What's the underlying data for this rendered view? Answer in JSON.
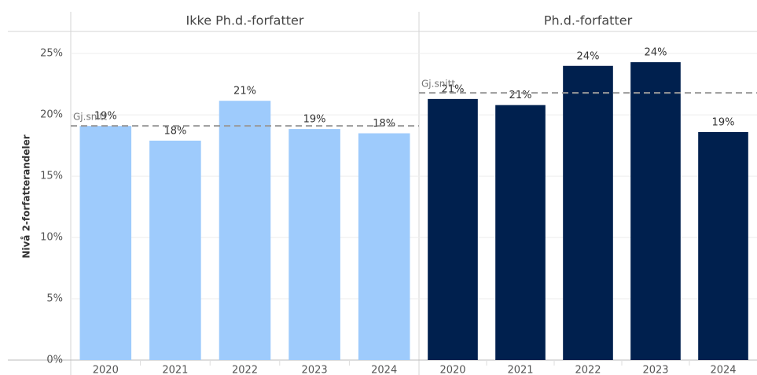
{
  "chart_data": {
    "type": "bar",
    "ylabel": "Nivå 2-forfatterandeler",
    "ylim": [
      0,
      27
    ],
    "yticks": [
      {
        "value": 0,
        "label": "0%"
      },
      {
        "value": 5,
        "label": "5%"
      },
      {
        "value": 10,
        "label": "10%"
      },
      {
        "value": 15,
        "label": "15%"
      },
      {
        "value": 20,
        "label": "20%"
      },
      {
        "value": 25,
        "label": "25%"
      }
    ],
    "grid": true,
    "panels": [
      {
        "title": "Ikke Ph.d.-forfatter",
        "color": "#9ecbfc",
        "categories": [
          "2020",
          "2021",
          "2022",
          "2023",
          "2024"
        ],
        "values": [
          19.1,
          17.9,
          21.15,
          18.85,
          18.5
        ],
        "value_labels": [
          "19%",
          "18%",
          "21%",
          "19%",
          "18%"
        ],
        "average": {
          "label": "Gj.snitt",
          "value": 19.1
        }
      },
      {
        "title": "Ph.d.-forfatter",
        "color": "#00204e",
        "categories": [
          "2020",
          "2021",
          "2022",
          "2023",
          "2024"
        ],
        "values": [
          21.3,
          20.8,
          24.0,
          24.3,
          18.6
        ],
        "value_labels": [
          "21%",
          "21%",
          "24%",
          "24%",
          "19%"
        ],
        "average": {
          "label": "Gj.snitt",
          "value": 21.8
        }
      }
    ]
  }
}
